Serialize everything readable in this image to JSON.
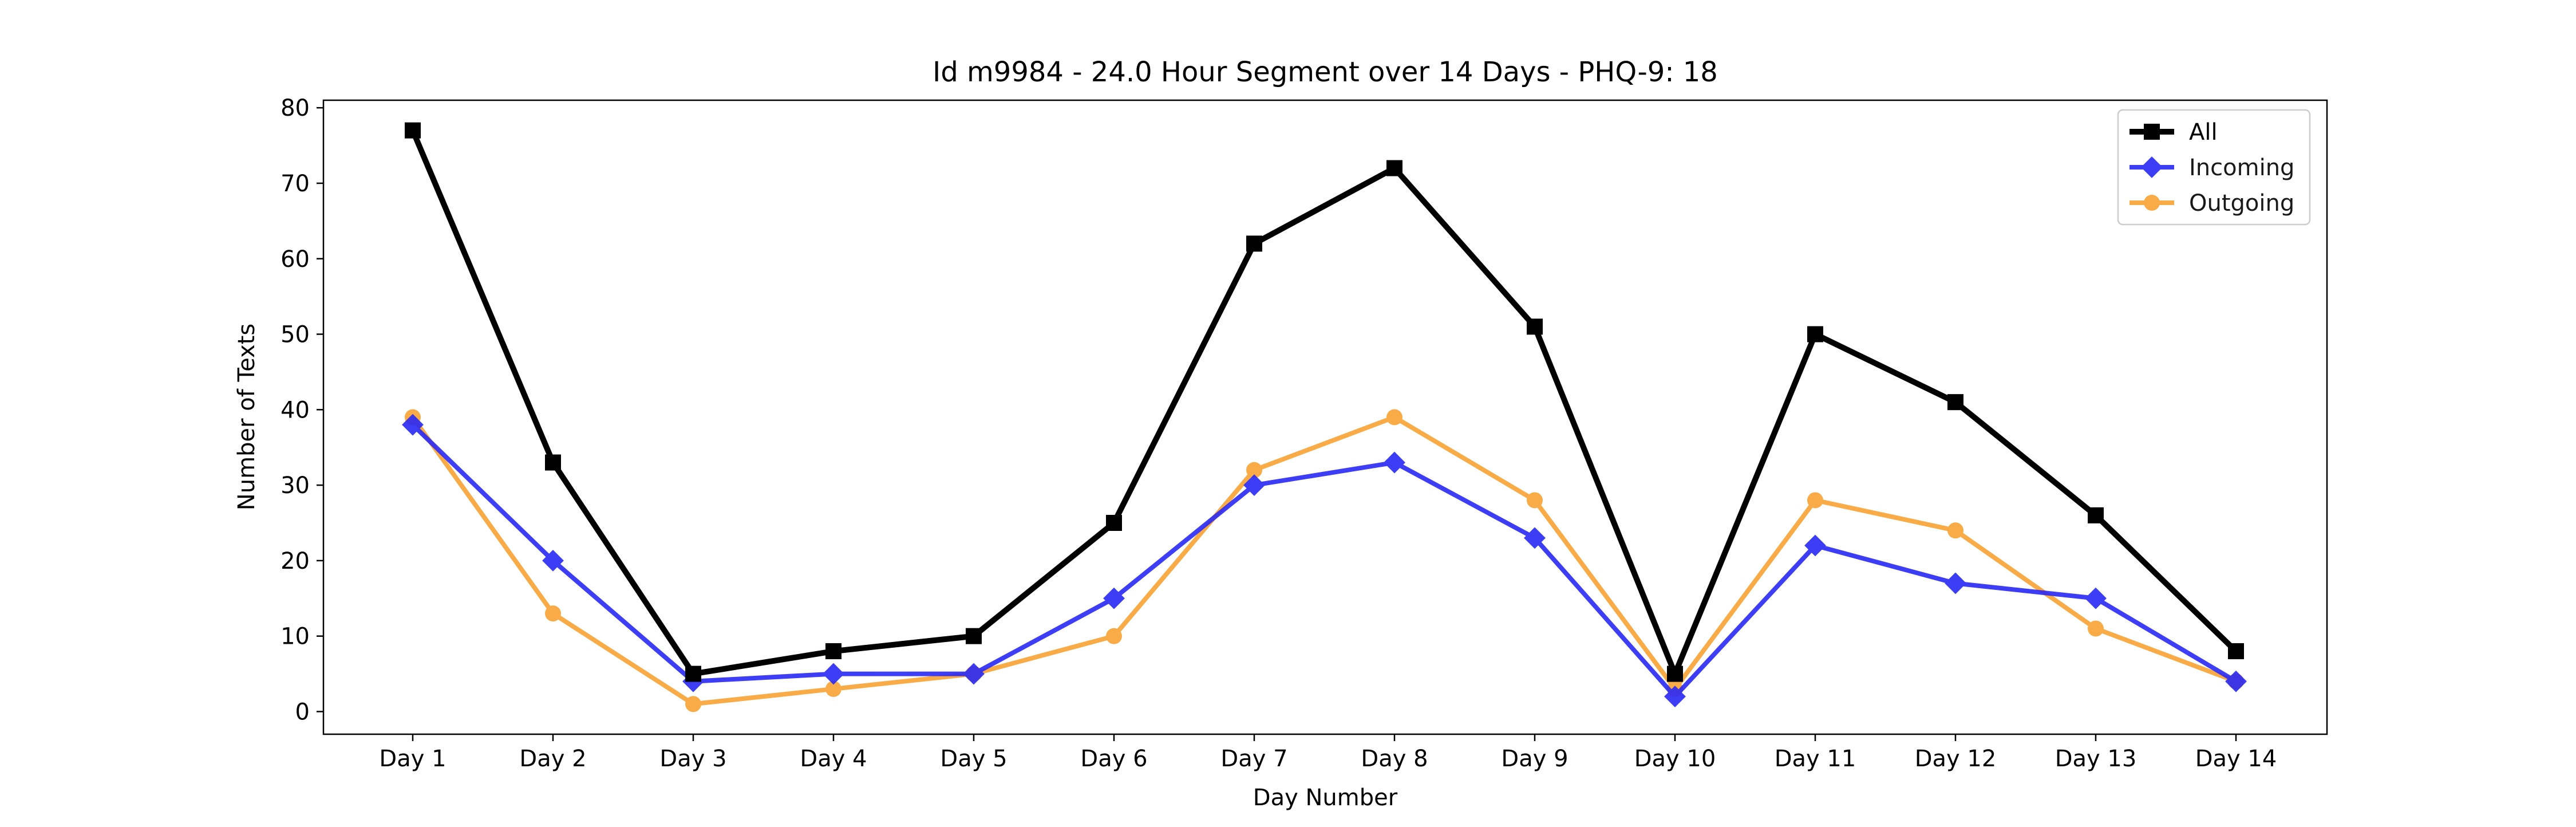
{
  "chart_data": {
    "type": "line",
    "title": "Id m9984 - 24.0 Hour Segment over 14 Days - PHQ-9: 18",
    "xlabel": "Day Number",
    "ylabel": "Number of Texts",
    "categories": [
      "Day 1",
      "Day 2",
      "Day 3",
      "Day 4",
      "Day 5",
      "Day 6",
      "Day 7",
      "Day 8",
      "Day 9",
      "Day 10",
      "Day 11",
      "Day 12",
      "Day 13",
      "Day 14"
    ],
    "ylim": [
      -3,
      81
    ],
    "yticks": [
      0,
      10,
      20,
      30,
      40,
      50,
      60,
      70,
      80
    ],
    "grid": false,
    "legend_position": "top-right",
    "series": [
      {
        "name": "All",
        "values": [
          77,
          33,
          5,
          8,
          10,
          25,
          62,
          72,
          51,
          5,
          50,
          41,
          26,
          8
        ],
        "color": "#000000",
        "marker": "square"
      },
      {
        "name": "Incoming",
        "values": [
          38,
          20,
          4,
          5,
          5,
          15,
          30,
          33,
          23,
          2,
          22,
          17,
          15,
          4
        ],
        "color": "#2929f5",
        "marker": "diamond"
      },
      {
        "name": "Outgoing",
        "values": [
          39,
          13,
          1,
          3,
          5,
          10,
          32,
          39,
          28,
          3,
          28,
          24,
          11,
          4
        ],
        "color": "#f8a233",
        "marker": "circle"
      }
    ]
  }
}
